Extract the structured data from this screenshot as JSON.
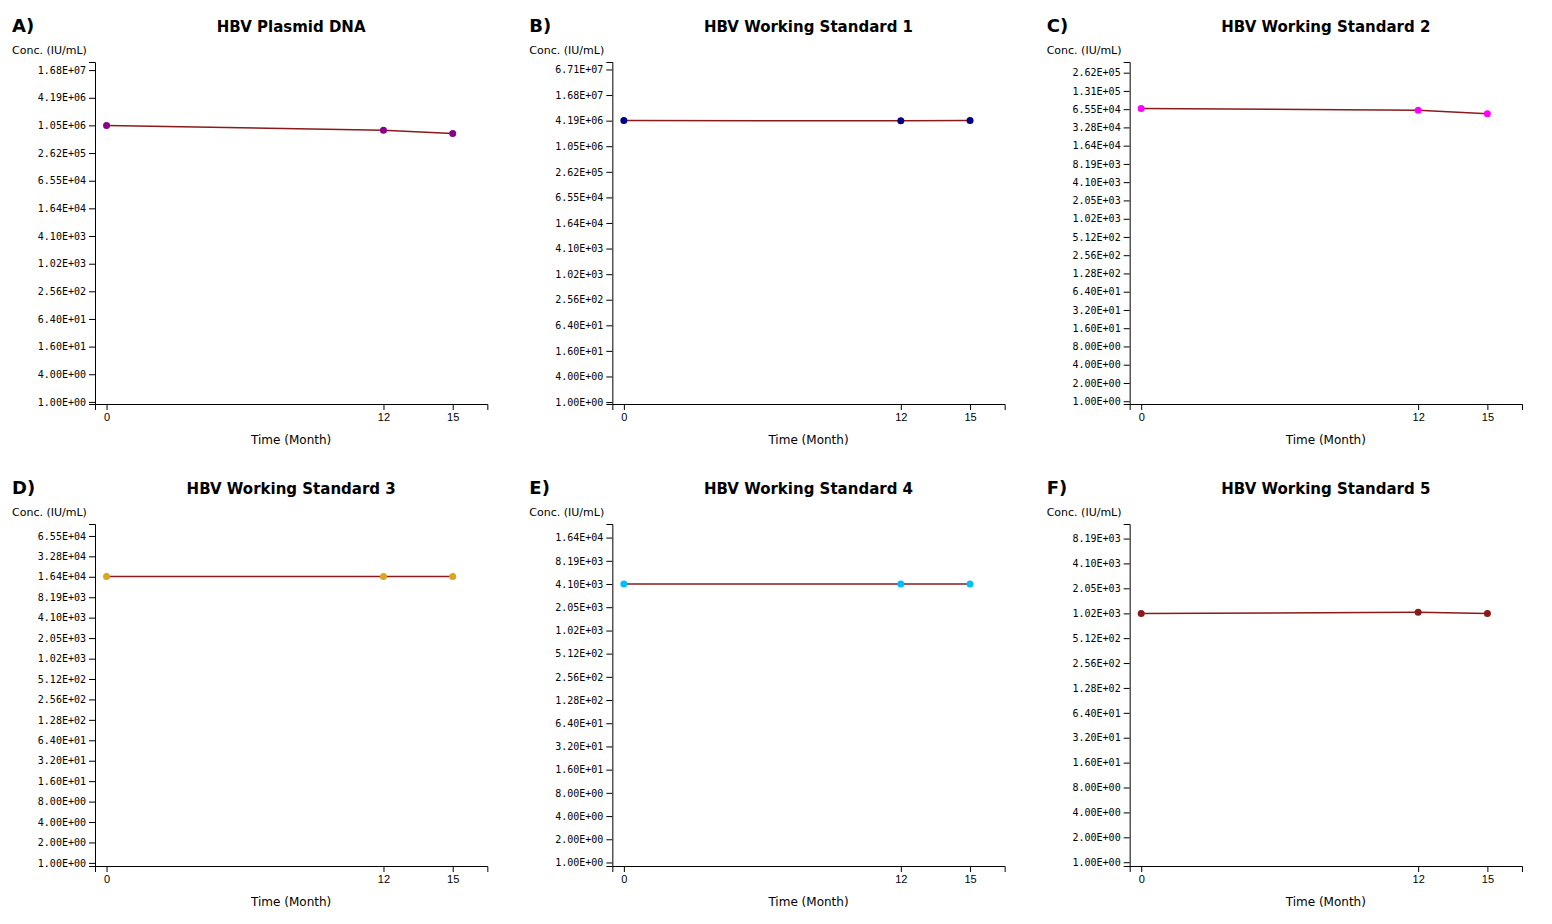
{
  "chart_data": [
    {
      "type": "line",
      "title": "HBV Plasmid DNA",
      "annotations": [
        "A)"
      ],
      "xlabel": "Time (Month)",
      "ylabel": "Conc. (IU/mL)",
      "x": [
        0,
        12,
        15
      ],
      "series": [
        {
          "values": [
            1050000,
            820000,
            700000
          ],
          "color": "#8B1A1A",
          "colors": [
            "#8B008B",
            "#8B008B",
            "#8B008B"
          ],
          "marker": "circle"
        }
      ],
      "log": "y",
      "grid": false,
      "xlim": [
        -0.5,
        16.5
      ],
      "xticks": [
        0,
        12,
        15
      ],
      "ylim": [
        0.9,
        25200000
      ],
      "yticks": [
        {
          "value": 16800000,
          "label": "1.68E+07"
        },
        {
          "value": 4190000,
          "label": "4.19E+06"
        },
        {
          "value": 1050000,
          "label": "1.05E+06"
        },
        {
          "value": 262000,
          "label": "2.62E+05"
        },
        {
          "value": 65500,
          "label": "6.55E+04"
        },
        {
          "value": 16400,
          "label": "1.64E+04"
        },
        {
          "value": 4100,
          "label": "4.10E+03"
        },
        {
          "value": 1020,
          "label": "1.02E+03"
        },
        {
          "value": 256,
          "label": "2.56E+02"
        },
        {
          "value": 64,
          "label": "6.40E+01"
        },
        {
          "value": 16,
          "label": "1.60E+01"
        },
        {
          "value": 4,
          "label": "4.00E+00"
        },
        {
          "value": 1,
          "label": "1.00E+00"
        }
      ]
    },
    {
      "type": "line",
      "title": "HBV Working Standard 1",
      "annotations": [
        "B)"
      ],
      "xlabel": "Time (Month)",
      "ylabel": "Conc. (IU/mL)",
      "x": [
        0,
        12,
        15
      ],
      "series": [
        {
          "values": [
            4200000,
            4150000,
            4200000
          ],
          "color": "#8B1A1A",
          "colors": [
            "#000080",
            "#000080",
            "#000080"
          ],
          "marker": "circle"
        }
      ],
      "log": "y",
      "grid": false,
      "xlim": [
        -0.5,
        16.5
      ],
      "xticks": [
        0,
        12,
        15
      ],
      "ylim": [
        0.9,
        100650000
      ],
      "yticks": [
        {
          "value": 67100000,
          "label": "6.71E+07"
        },
        {
          "value": 16800000,
          "label": "1.68E+07"
        },
        {
          "value": 4190000,
          "label": "4.19E+06"
        },
        {
          "value": 1050000,
          "label": "1.05E+06"
        },
        {
          "value": 262000,
          "label": "2.62E+05"
        },
        {
          "value": 65500,
          "label": "6.55E+04"
        },
        {
          "value": 16400,
          "label": "1.64E+04"
        },
        {
          "value": 4100,
          "label": "4.10E+03"
        },
        {
          "value": 1020,
          "label": "1.02E+03"
        },
        {
          "value": 256,
          "label": "2.56E+02"
        },
        {
          "value": 64,
          "label": "6.40E+01"
        },
        {
          "value": 16,
          "label": "1.60E+01"
        },
        {
          "value": 4,
          "label": "4.00E+00"
        },
        {
          "value": 1,
          "label": "1.00E+00"
        }
      ]
    },
    {
      "type": "line",
      "title": "HBV Working Standard 2",
      "annotations": [
        "C)"
      ],
      "xlabel": "Time (Month)",
      "ylabel": "Conc. (IU/mL)",
      "x": [
        0,
        12,
        15
      ],
      "series": [
        {
          "values": [
            67000,
            63000,
            55000
          ],
          "color": "#8B1A1A",
          "colors": [
            "#FF00FF",
            "#FF00FF",
            "#FF00FF"
          ],
          "marker": "circle"
        }
      ],
      "log": "y",
      "grid": false,
      "xlim": [
        -0.5,
        16.5
      ],
      "xticks": [
        0,
        12,
        15
      ],
      "ylim": [
        0.9,
        393000
      ],
      "yticks": [
        {
          "value": 262000,
          "label": "2.62E+05"
        },
        {
          "value": 131000,
          "label": "1.31E+05"
        },
        {
          "value": 65500,
          "label": "6.55E+04"
        },
        {
          "value": 32800,
          "label": "3.28E+04"
        },
        {
          "value": 16400,
          "label": "1.64E+04"
        },
        {
          "value": 8190,
          "label": "8.19E+03"
        },
        {
          "value": 4100,
          "label": "4.10E+03"
        },
        {
          "value": 2050,
          "label": "2.05E+03"
        },
        {
          "value": 1020,
          "label": "1.02E+03"
        },
        {
          "value": 512,
          "label": "5.12E+02"
        },
        {
          "value": 256,
          "label": "2.56E+02"
        },
        {
          "value": 128,
          "label": "1.28E+02"
        },
        {
          "value": 64,
          "label": "6.40E+01"
        },
        {
          "value": 32,
          "label": "3.20E+01"
        },
        {
          "value": 16,
          "label": "1.60E+01"
        },
        {
          "value": 8,
          "label": "8.00E+00"
        },
        {
          "value": 4,
          "label": "4.00E+00"
        },
        {
          "value": 2,
          "label": "2.00E+00"
        },
        {
          "value": 1,
          "label": "1.00E+00"
        }
      ]
    },
    {
      "type": "line",
      "title": "HBV Working Standard 3",
      "annotations": [
        "D)"
      ],
      "xlabel": "Time (Month)",
      "ylabel": "Conc. (IU/mL)",
      "x": [
        0,
        12,
        15
      ],
      "series": [
        {
          "values": [
            16500,
            16500,
            16500
          ],
          "color": "#8B1A1A",
          "colors": [
            "#DAA520",
            "#DAA520",
            "#DAA520"
          ],
          "marker": "circle"
        }
      ],
      "log": "y",
      "grid": false,
      "xlim": [
        -0.5,
        16.5
      ],
      "xticks": [
        0,
        12,
        15
      ],
      "ylim": [
        0.9,
        98250
      ],
      "yticks": [
        {
          "value": 65500,
          "label": "6.55E+04"
        },
        {
          "value": 32800,
          "label": "3.28E+04"
        },
        {
          "value": 16400,
          "label": "1.64E+04"
        },
        {
          "value": 8190,
          "label": "8.19E+03"
        },
        {
          "value": 4100,
          "label": "4.10E+03"
        },
        {
          "value": 2050,
          "label": "2.05E+03"
        },
        {
          "value": 1020,
          "label": "1.02E+03"
        },
        {
          "value": 512,
          "label": "5.12E+02"
        },
        {
          "value": 256,
          "label": "2.56E+02"
        },
        {
          "value": 128,
          "label": "1.28E+02"
        },
        {
          "value": 64,
          "label": "6.40E+01"
        },
        {
          "value": 32,
          "label": "3.20E+01"
        },
        {
          "value": 16,
          "label": "1.60E+01"
        },
        {
          "value": 8,
          "label": "8.00E+00"
        },
        {
          "value": 4,
          "label": "4.00E+00"
        },
        {
          "value": 2,
          "label": "2.00E+00"
        },
        {
          "value": 1,
          "label": "1.00E+00"
        }
      ]
    },
    {
      "type": "line",
      "title": "HBV Working Standard 4",
      "annotations": [
        "E)"
      ],
      "xlabel": "Time (Month)",
      "ylabel": "Conc. (IU/mL)",
      "x": [
        0,
        12,
        15
      ],
      "series": [
        {
          "values": [
            4100,
            4100,
            4100
          ],
          "color": "#8B1A1A",
          "colors": [
            "#00BFFF",
            "#00BFFF",
            "#00BFFF"
          ],
          "marker": "circle"
        }
      ],
      "log": "y",
      "grid": false,
      "xlim": [
        -0.5,
        16.5
      ],
      "xticks": [
        0,
        12,
        15
      ],
      "ylim": [
        0.9,
        24600
      ],
      "yticks": [
        {
          "value": 16400,
          "label": "1.64E+04"
        },
        {
          "value": 8190,
          "label": "8.19E+03"
        },
        {
          "value": 4100,
          "label": "4.10E+03"
        },
        {
          "value": 2050,
          "label": "2.05E+03"
        },
        {
          "value": 1020,
          "label": "1.02E+03"
        },
        {
          "value": 512,
          "label": "5.12E+02"
        },
        {
          "value": 256,
          "label": "2.56E+02"
        },
        {
          "value": 128,
          "label": "1.28E+02"
        },
        {
          "value": 64,
          "label": "6.40E+01"
        },
        {
          "value": 32,
          "label": "3.20E+01"
        },
        {
          "value": 16,
          "label": "1.60E+01"
        },
        {
          "value": 8,
          "label": "8.00E+00"
        },
        {
          "value": 4,
          "label": "4.00E+00"
        },
        {
          "value": 2,
          "label": "2.00E+00"
        },
        {
          "value": 1,
          "label": "1.00E+00"
        }
      ]
    },
    {
      "type": "line",
      "title": "HBV Working Standard 5",
      "annotations": [
        "F)"
      ],
      "xlabel": "Time (Month)",
      "ylabel": "Conc. (IU/mL)",
      "x": [
        0,
        12,
        15
      ],
      "series": [
        {
          "values": [
            1020,
            1050,
            1020
          ],
          "color": "#8B1A1A",
          "colors": [
            "#8B1A1A",
            "#8B1A1A",
            "#8B1A1A"
          ],
          "marker": "circle"
        }
      ],
      "log": "y",
      "grid": false,
      "xlim": [
        -0.5,
        16.5
      ],
      "xticks": [
        0,
        12,
        15
      ],
      "ylim": [
        0.9,
        12285
      ],
      "yticks": [
        {
          "value": 8190,
          "label": "8.19E+03"
        },
        {
          "value": 4100,
          "label": "4.10E+03"
        },
        {
          "value": 2050,
          "label": "2.05E+03"
        },
        {
          "value": 1020,
          "label": "1.02E+03"
        },
        {
          "value": 512,
          "label": "5.12E+02"
        },
        {
          "value": 256,
          "label": "2.56E+02"
        },
        {
          "value": 128,
          "label": "1.28E+02"
        },
        {
          "value": 64,
          "label": "6.40E+01"
        },
        {
          "value": 32,
          "label": "3.20E+01"
        },
        {
          "value": 16,
          "label": "1.60E+01"
        },
        {
          "value": 8,
          "label": "8.00E+00"
        },
        {
          "value": 4,
          "label": "4.00E+00"
        },
        {
          "value": 2,
          "label": "2.00E+00"
        },
        {
          "value": 1,
          "label": "1.00E+00"
        }
      ]
    }
  ]
}
